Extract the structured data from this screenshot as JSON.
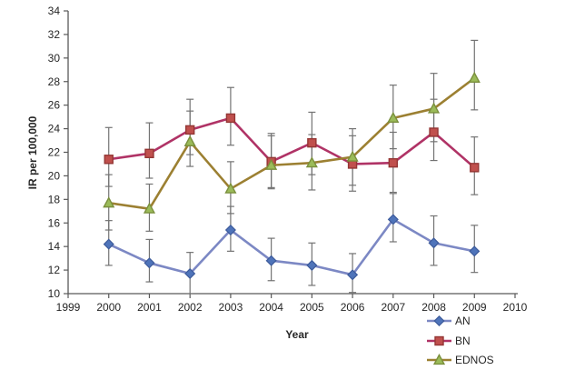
{
  "figure": {
    "background": "#ffffff",
    "axis_color": "#595959",
    "text_color": "#262626"
  },
  "chart_data": {
    "type": "line",
    "title": "",
    "xlabel": "Year",
    "ylabel": "IR per 100,000",
    "xlim": [
      1999,
      2010
    ],
    "ylim": [
      10,
      34
    ],
    "xticks": [
      1999,
      2000,
      2001,
      2002,
      2003,
      2004,
      2005,
      2006,
      2007,
      2008,
      2009,
      2010
    ],
    "yticks": [
      10,
      12,
      14,
      16,
      18,
      20,
      22,
      24,
      26,
      28,
      30,
      32,
      34
    ],
    "grid": false,
    "legend_position": "below-bottom-right",
    "error_bar_color": "#737373",
    "x": [
      2000,
      2001,
      2002,
      2003,
      2004,
      2005,
      2006,
      2007,
      2008,
      2009
    ],
    "series": [
      {
        "name": "AN",
        "marker": "diamond",
        "color": "#7c88c4",
        "marker_fill": "#4f74ba",
        "marker_stroke": "#3d5b9b",
        "values": [
          14.2,
          12.6,
          11.7,
          15.4,
          12.8,
          12.4,
          11.6,
          16.3,
          14.3,
          13.6
        ],
        "err_low": [
          12.4,
          11.0,
          10.0,
          13.6,
          11.1,
          10.7,
          10.1,
          14.4,
          12.4,
          11.8
        ],
        "err_high": [
          16.2,
          14.6,
          13.5,
          17.4,
          14.7,
          14.3,
          13.4,
          18.5,
          16.6,
          15.8
        ]
      },
      {
        "name": "BN",
        "marker": "square",
        "color": "#b03366",
        "marker_fill": "#c0504d",
        "marker_stroke": "#943634",
        "values": [
          21.4,
          21.9,
          23.9,
          24.9,
          21.2,
          22.8,
          21.0,
          21.1,
          23.7,
          20.7
        ],
        "err_low": [
          19.1,
          19.8,
          21.8,
          22.6,
          18.9,
          20.1,
          18.7,
          18.6,
          21.3,
          18.4
        ],
        "err_high": [
          24.1,
          24.5,
          26.5,
          27.5,
          23.6,
          25.4,
          23.4,
          23.7,
          26.5,
          23.3
        ]
      },
      {
        "name": "EDNOS",
        "marker": "triangle",
        "color": "#9c8032",
        "marker_fill": "#9bbb59",
        "marker_stroke": "#7a8f3c",
        "values": [
          17.7,
          17.2,
          22.9,
          18.9,
          20.9,
          21.1,
          21.6,
          24.9,
          25.7,
          28.3
        ],
        "err_low": [
          15.4,
          15.3,
          20.8,
          16.8,
          19.0,
          18.8,
          19.2,
          22.3,
          22.9,
          25.6
        ],
        "err_high": [
          20.1,
          19.3,
          25.5,
          21.2,
          23.4,
          23.5,
          24.0,
          27.7,
          28.7,
          31.5
        ]
      }
    ]
  }
}
